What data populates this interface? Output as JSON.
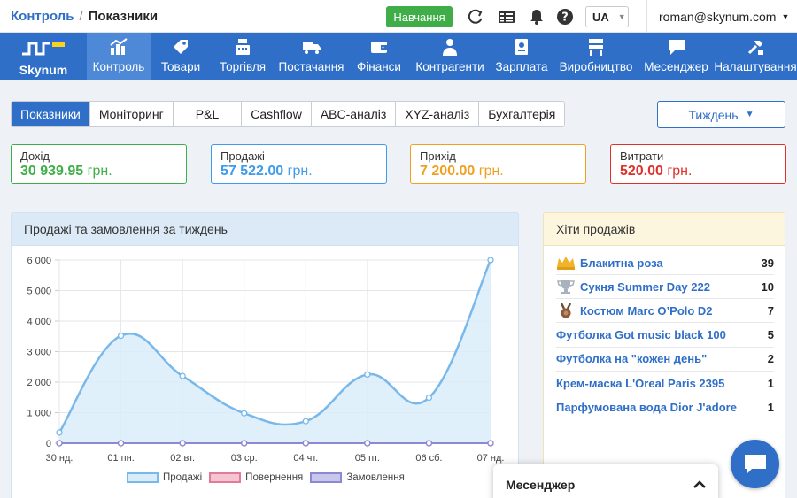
{
  "header": {
    "breadcrumb_root": "Контроль",
    "breadcrumb_sep": "/",
    "breadcrumb_current": "Показники",
    "learn_button": "Навчання",
    "language": "UA",
    "user_email": "roman@skynum.com"
  },
  "nav": {
    "logo": "Skynum",
    "items": [
      {
        "label": "Контроль",
        "icon": "chart-icon"
      },
      {
        "label": "Товари",
        "icon": "tag-icon"
      },
      {
        "label": "Торгівля",
        "icon": "cash-register-icon"
      },
      {
        "label": "Постачання",
        "icon": "truck-icon"
      },
      {
        "label": "Фінанси",
        "icon": "wallet-icon"
      },
      {
        "label": "Контрагенти",
        "icon": "person-icon"
      },
      {
        "label": "Зарплата",
        "icon": "payroll-icon"
      },
      {
        "label": "Виробництво",
        "icon": "factory-icon"
      },
      {
        "label": "Месенджер",
        "icon": "message-icon"
      },
      {
        "label": "Налаштування",
        "icon": "tools-icon"
      }
    ]
  },
  "tabs": [
    "Показники",
    "Моніторинг",
    "P&L",
    "Cashflow",
    "ABC-аналіз",
    "XYZ-аналіз",
    "Бухгалтерія"
  ],
  "period": "Тиждень",
  "stats": [
    {
      "label": "Дохід",
      "value": "30 939.95",
      "currency": "грн.",
      "color": "#3fae49"
    },
    {
      "label": "Продажі",
      "value": "57 522.00",
      "currency": "грн.",
      "color": "#3d9be9"
    },
    {
      "label": "Прихід",
      "value": "7 200.00",
      "currency": "грн.",
      "color": "#f0a020"
    },
    {
      "label": "Витрати",
      "value": "520.00",
      "currency": "грн.",
      "color": "#e0302a"
    }
  ],
  "chart_panel_title": "Продажі та замовлення за тиждень",
  "chart_data": {
    "type": "line",
    "x": [
      "30 нд.",
      "01 пн.",
      "02 вт.",
      "03 ср.",
      "04 чт.",
      "05 пт.",
      "06 сб.",
      "07 нд."
    ],
    "yticks": [
      "6 000",
      "5 000",
      "4 000",
      "3 000",
      "2 000",
      "1 000",
      "0"
    ],
    "ylim": [
      0,
      6000
    ],
    "series": [
      {
        "name": "Продажі",
        "values": [
          350,
          3520,
          2200,
          980,
          720,
          2250,
          1490,
          6000
        ],
        "color": "#79b8ea",
        "fill": "#d8ecfa"
      },
      {
        "name": "Повернення",
        "values": [
          0,
          0,
          0,
          0,
          0,
          0,
          0,
          0
        ],
        "color": "#e37a9a",
        "fill": "#f5c4d3"
      },
      {
        "name": "Замовлення",
        "values": [
          0,
          0,
          0,
          0,
          0,
          0,
          0,
          0
        ],
        "color": "#8b88d4",
        "fill": "#c9c6ec"
      }
    ],
    "grid": true,
    "legend": "bottom"
  },
  "hits": {
    "title": "Хіти продажів",
    "items": [
      {
        "name": "Блакитна роза",
        "count": "39",
        "medal": "crown-icon"
      },
      {
        "name": "Сукня Summer Day 222",
        "count": "10",
        "medal": "trophy-icon"
      },
      {
        "name": "Костюм Marc O’Polo D2",
        "count": "7",
        "medal": "medal-icon"
      },
      {
        "name": "Футболка Got music black 100",
        "count": "5",
        "medal": ""
      },
      {
        "name": "Футболка на \"кожен день\"",
        "count": "2",
        "medal": ""
      },
      {
        "name": "Крем-маска L'Oreal Paris 2395",
        "count": "1",
        "medal": ""
      },
      {
        "name": "Парфумована вода Dior J'adore",
        "count": "1",
        "medal": ""
      }
    ]
  },
  "messenger": {
    "title": "Месенджер"
  }
}
